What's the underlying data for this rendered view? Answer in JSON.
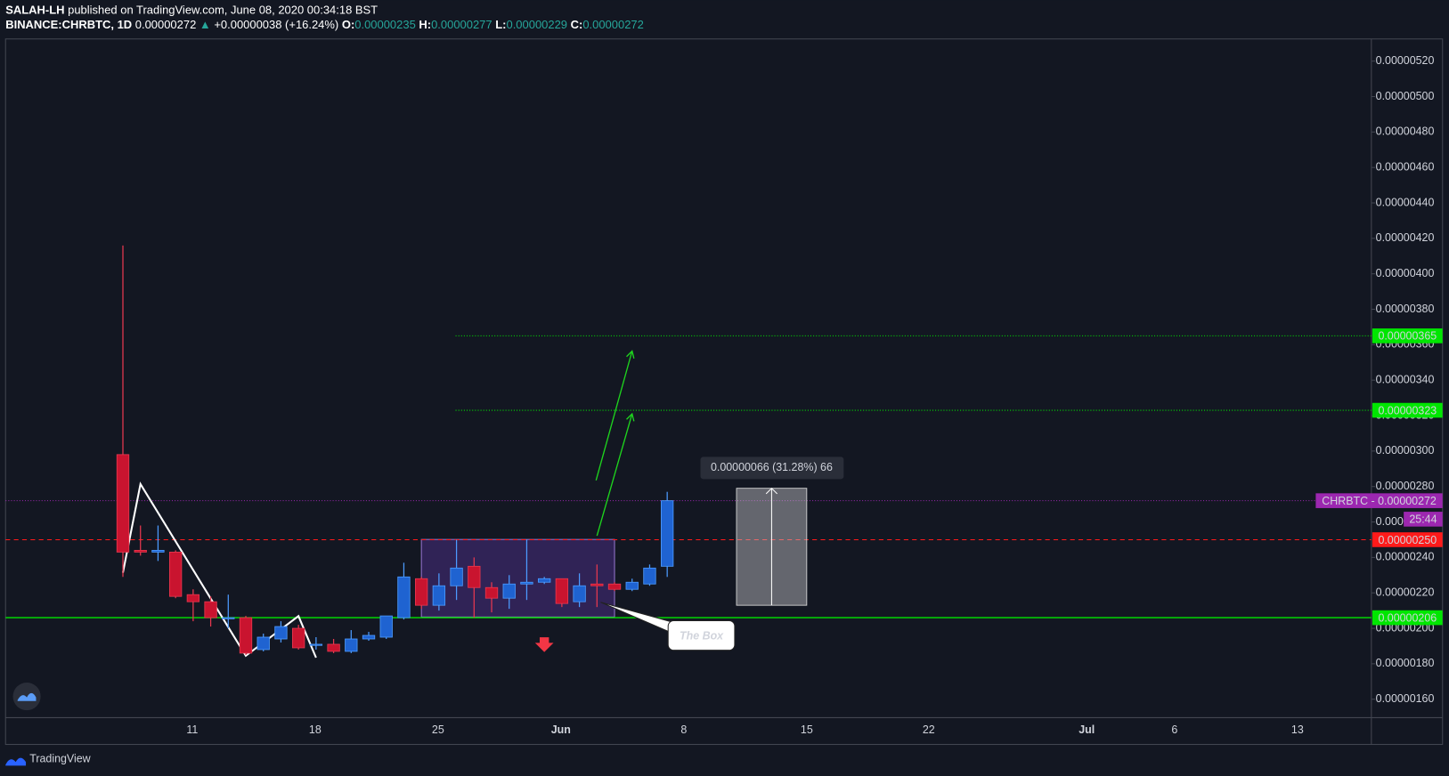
{
  "header": {
    "author": "SALAH-LH",
    "published": "published on TradingView.com, June 08, 2020 00:34:18 BST",
    "symbol": "BINANCE:CHRBTC, 1D",
    "last": "0.00000272",
    "arrow": "▲",
    "change": "+0.00000038 (+16.24%)",
    "o_label": "O:",
    "o": "0.00000235",
    "h_label": "H:",
    "h": "0.00000277",
    "l_label": "L:",
    "l": "0.00000229",
    "c_label": "C:",
    "c": "0.00000272"
  },
  "chart_data": {
    "type": "candlestick",
    "open": [
      2.98e-06,
      2.44e-06,
      2.43e-06,
      2.43e-06,
      2.19e-06,
      2.15e-06,
      2.06e-06,
      2.06e-06,
      1.88e-06,
      1.94e-06,
      2e-06,
      1.91e-06,
      1.91e-06,
      1.87e-06,
      1.94e-06,
      1.95e-06,
      2.06e-06,
      2.28e-06,
      2.13e-06,
      2.24e-06,
      2.35e-06,
      2.23e-06,
      2.17e-06,
      2.25e-06,
      2.26e-06,
      2.28e-06,
      2.15e-06,
      2.25e-06,
      2.25e-06,
      2.22e-06,
      2.25e-06,
      2.35e-06
    ],
    "high": [
      4.16e-06,
      2.58e-06,
      2.58e-06,
      2.44e-06,
      2.22e-06,
      2.18e-06,
      2.19e-06,
      2.07e-06,
      1.97e-06,
      2.04e-06,
      2.02e-06,
      1.95e-06,
      1.94e-06,
      1.99e-06,
      1.98e-06,
      2.07e-06,
      2.37e-06,
      2.29e-06,
      2.31e-06,
      2.5e-06,
      2.4e-06,
      2.26e-06,
      2.3e-06,
      2.5e-06,
      2.29e-06,
      2.28e-06,
      2.31e-06,
      2.36e-06,
      2.26e-06,
      2.28e-06,
      2.36e-06,
      2.77e-06
    ],
    "low": [
      2.29e-06,
      2.41e-06,
      2.38e-06,
      2.17e-06,
      2.04e-06,
      2.01e-06,
      2e-06,
      1.85e-06,
      1.87e-06,
      1.92e-06,
      1.88e-06,
      1.88e-06,
      1.86e-06,
      1.86e-06,
      1.93e-06,
      1.94e-06,
      2.05e-06,
      2.11e-06,
      2.1e-06,
      2.16e-06,
      2.06e-06,
      2.09e-06,
      2.11e-06,
      2.16e-06,
      2.25e-06,
      2.12e-06,
      2.12e-06,
      2.12e-06,
      2.21e-06,
      2.21e-06,
      2.24e-06,
      2.29e-06
    ],
    "close": [
      2.43e-06,
      2.43e-06,
      2.44e-06,
      2.18e-06,
      2.15e-06,
      2.06e-06,
      2.06e-06,
      1.86e-06,
      1.95e-06,
      2.01e-06,
      1.89e-06,
      1.91e-06,
      1.87e-06,
      1.94e-06,
      1.96e-06,
      2.07e-06,
      2.29e-06,
      2.13e-06,
      2.24e-06,
      2.34e-06,
      2.23e-06,
      2.17e-06,
      2.25e-06,
      2.26e-06,
      2.28e-06,
      2.14e-06,
      2.24e-06,
      2.24e-06,
      2.22e-06,
      2.26e-06,
      2.34e-06,
      2.72e-06
    ],
    "up_color": "#1f63d1",
    "down_color": "#c9142f",
    "ylim": [
      1.496e-06,
      5.325e-06
    ],
    "yticks": [
      {
        "value": 1.6e-06,
        "label": "0.00000160"
      },
      {
        "value": 1.8e-06,
        "label": "0.00000180"
      },
      {
        "value": 2e-06,
        "label": "0.00000200"
      },
      {
        "value": 2.2e-06,
        "label": "0.00000220"
      },
      {
        "value": 2.4e-06,
        "label": "0.00000240"
      },
      {
        "value": 2.6e-06,
        "label": "0.00000260"
      },
      {
        "value": 2.8e-06,
        "label": "0.00000280"
      },
      {
        "value": 3e-06,
        "label": "0.00000300"
      },
      {
        "value": 3.2e-06,
        "label": "0.00000320"
      },
      {
        "value": 3.4e-06,
        "label": "0.00000340"
      },
      {
        "value": 3.6e-06,
        "label": "0.00000360"
      },
      {
        "value": 3.8e-06,
        "label": "0.00000380"
      },
      {
        "value": 4e-06,
        "label": "0.00000400"
      },
      {
        "value": 4.2e-06,
        "label": "0.00000420"
      },
      {
        "value": 4.4e-06,
        "label": "0.00000440"
      },
      {
        "value": 4.6e-06,
        "label": "0.00000460"
      },
      {
        "value": 4.8e-06,
        "label": "0.00000480"
      },
      {
        "value": 5e-06,
        "label": "0.00000500"
      },
      {
        "value": 5.2e-06,
        "label": "0.00000520"
      }
    ],
    "xticks": [
      "11",
      "18",
      "25",
      "Jun",
      "8",
      "15",
      "22",
      "Jul",
      "6",
      "13"
    ],
    "levels": [
      {
        "value": 3.65e-06,
        "label": "0.00000365",
        "color": "#00e600",
        "style": "dotted"
      },
      {
        "value": 3.23e-06,
        "label": "0.00000323",
        "color": "#00e600",
        "style": "dotted"
      },
      {
        "value": 2.72e-06,
        "label": "CHRBTC - 0.00000272",
        "color": "#9c27b0",
        "style": "dotted"
      },
      {
        "value": 2.5e-06,
        "label": "0.00000250",
        "color": "#ff1a1a",
        "style": "dashed"
      },
      {
        "value": 2.06e-06,
        "label": "0.00000206",
        "color": "#00e600",
        "style": "solid"
      }
    ],
    "countdown": "25:44",
    "measure": {
      "from": 2.13e-06,
      "to": 2.79e-06,
      "label": "0.00000066 (31.28%) 66"
    },
    "annotation": "The Box"
  },
  "footer": "TradingView"
}
